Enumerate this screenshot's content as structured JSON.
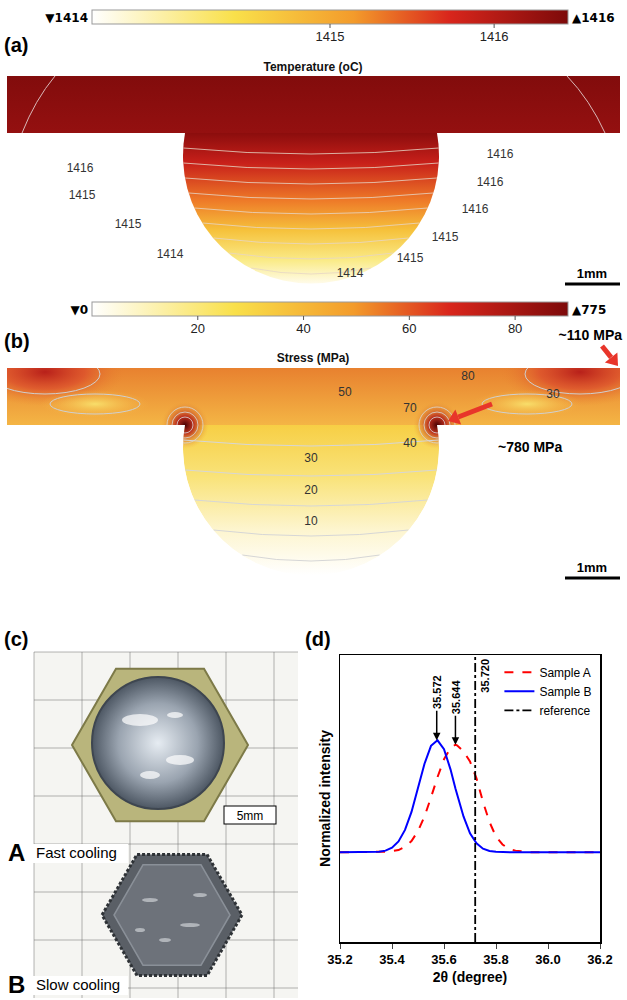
{
  "panel_a": {
    "label": "(a)",
    "title": "Temperature (oC)",
    "colorbar": {
      "range": [
        1413.55,
        1416.45
      ],
      "ticks": [
        1415,
        1416
      ],
      "min_label": "▼1414",
      "max_label": "▲1416"
    },
    "contour_labels": [
      1416,
      1416,
      1416,
      1415,
      1416,
      1415,
      1415,
      1414,
      1415,
      1414
    ],
    "scale_bar": "1mm"
  },
  "panel_b": {
    "label": "(b)",
    "title": "Stress (MPa)",
    "colorbar": {
      "range": [
        0,
        90
      ],
      "ticks": [
        20,
        40,
        60,
        80
      ],
      "min_label": "▼0",
      "max_label": "▲775"
    },
    "contour_labels": [
      80,
      50,
      70,
      30,
      40,
      30,
      20,
      10
    ],
    "callouts": [
      "~110 MPa",
      "~780 MPa"
    ],
    "scale_bar": "1mm"
  },
  "panel_c": {
    "label": "(c)",
    "samples": [
      {
        "letter": "A",
        "caption": "Fast cooling"
      },
      {
        "letter": "B",
        "caption": "Slow cooling"
      }
    ],
    "scale_bar": "5mm"
  },
  "chart_data": {
    "type": "line",
    "panel": "(d)",
    "x_label": "2θ (degree)",
    "y_label": "Normalized intensity",
    "x": [
      35.2,
      35.225,
      35.25,
      35.275,
      35.3,
      35.325,
      35.35,
      35.375,
      35.4,
      35.425,
      35.45,
      35.475,
      35.5,
      35.525,
      35.55,
      35.572,
      35.575,
      35.6,
      35.625,
      35.644,
      35.65,
      35.675,
      35.7,
      35.725,
      35.75,
      35.775,
      35.8,
      35.825,
      35.85,
      35.875,
      35.9,
      35.925,
      35.95,
      35.975,
      36.0,
      36.025,
      36.05,
      36.075,
      36.1,
      36.125,
      36.15,
      36.175,
      36.2
    ],
    "series": [
      {
        "name": "Sample A",
        "color": "#ff0000",
        "line_style": "dashed",
        "values": [
          0,
          0,
          0,
          0,
          0,
          0,
          0.002,
          0.005,
          0.01,
          0.02,
          0.05,
          0.1,
          0.19,
          0.32,
          0.49,
          0.65,
          0.67,
          0.83,
          0.93,
          0.96,
          0.955,
          0.9,
          0.81,
          0.66,
          0.45,
          0.27,
          0.14,
          0.07,
          0.03,
          0.015,
          0.006,
          0.002,
          0,
          0,
          0,
          0,
          0,
          0,
          0,
          0,
          0,
          0,
          0
        ],
        "peak": {
          "value": 35.644,
          "label": "35.644"
        }
      },
      {
        "name": "Sample B",
        "color": "#0000ff",
        "line_style": "solid",
        "values": [
          0,
          0,
          0,
          0,
          0.0003,
          0.0014,
          0.005,
          0.015,
          0.041,
          0.097,
          0.2,
          0.36,
          0.57,
          0.79,
          0.95,
          1.0,
          0.999,
          0.92,
          0.74,
          0.57,
          0.52,
          0.32,
          0.17,
          0.08,
          0.032,
          0.012,
          0.004,
          0.001,
          0,
          0,
          0,
          0,
          0,
          0,
          0,
          0,
          0,
          0,
          0,
          0,
          0,
          0,
          0
        ],
        "peak": {
          "value": 35.572,
          "label": "35.572"
        }
      },
      {
        "name": "reference",
        "type": "vline",
        "color": "#000000",
        "line_style": "dashdot",
        "x": {
          "value": 35.72,
          "label": "35.720"
        }
      }
    ],
    "xlim": [
      35.2,
      36.2
    ],
    "xticks": [
      35.2,
      35.4,
      35.6,
      35.8,
      {
        "value": 36,
        "label": "36.0"
      },
      36.2
    ],
    "ylim": [
      -0.8,
      1.76
    ],
    "tick_labels": "x",
    "grid": false,
    "legend": "top right"
  }
}
